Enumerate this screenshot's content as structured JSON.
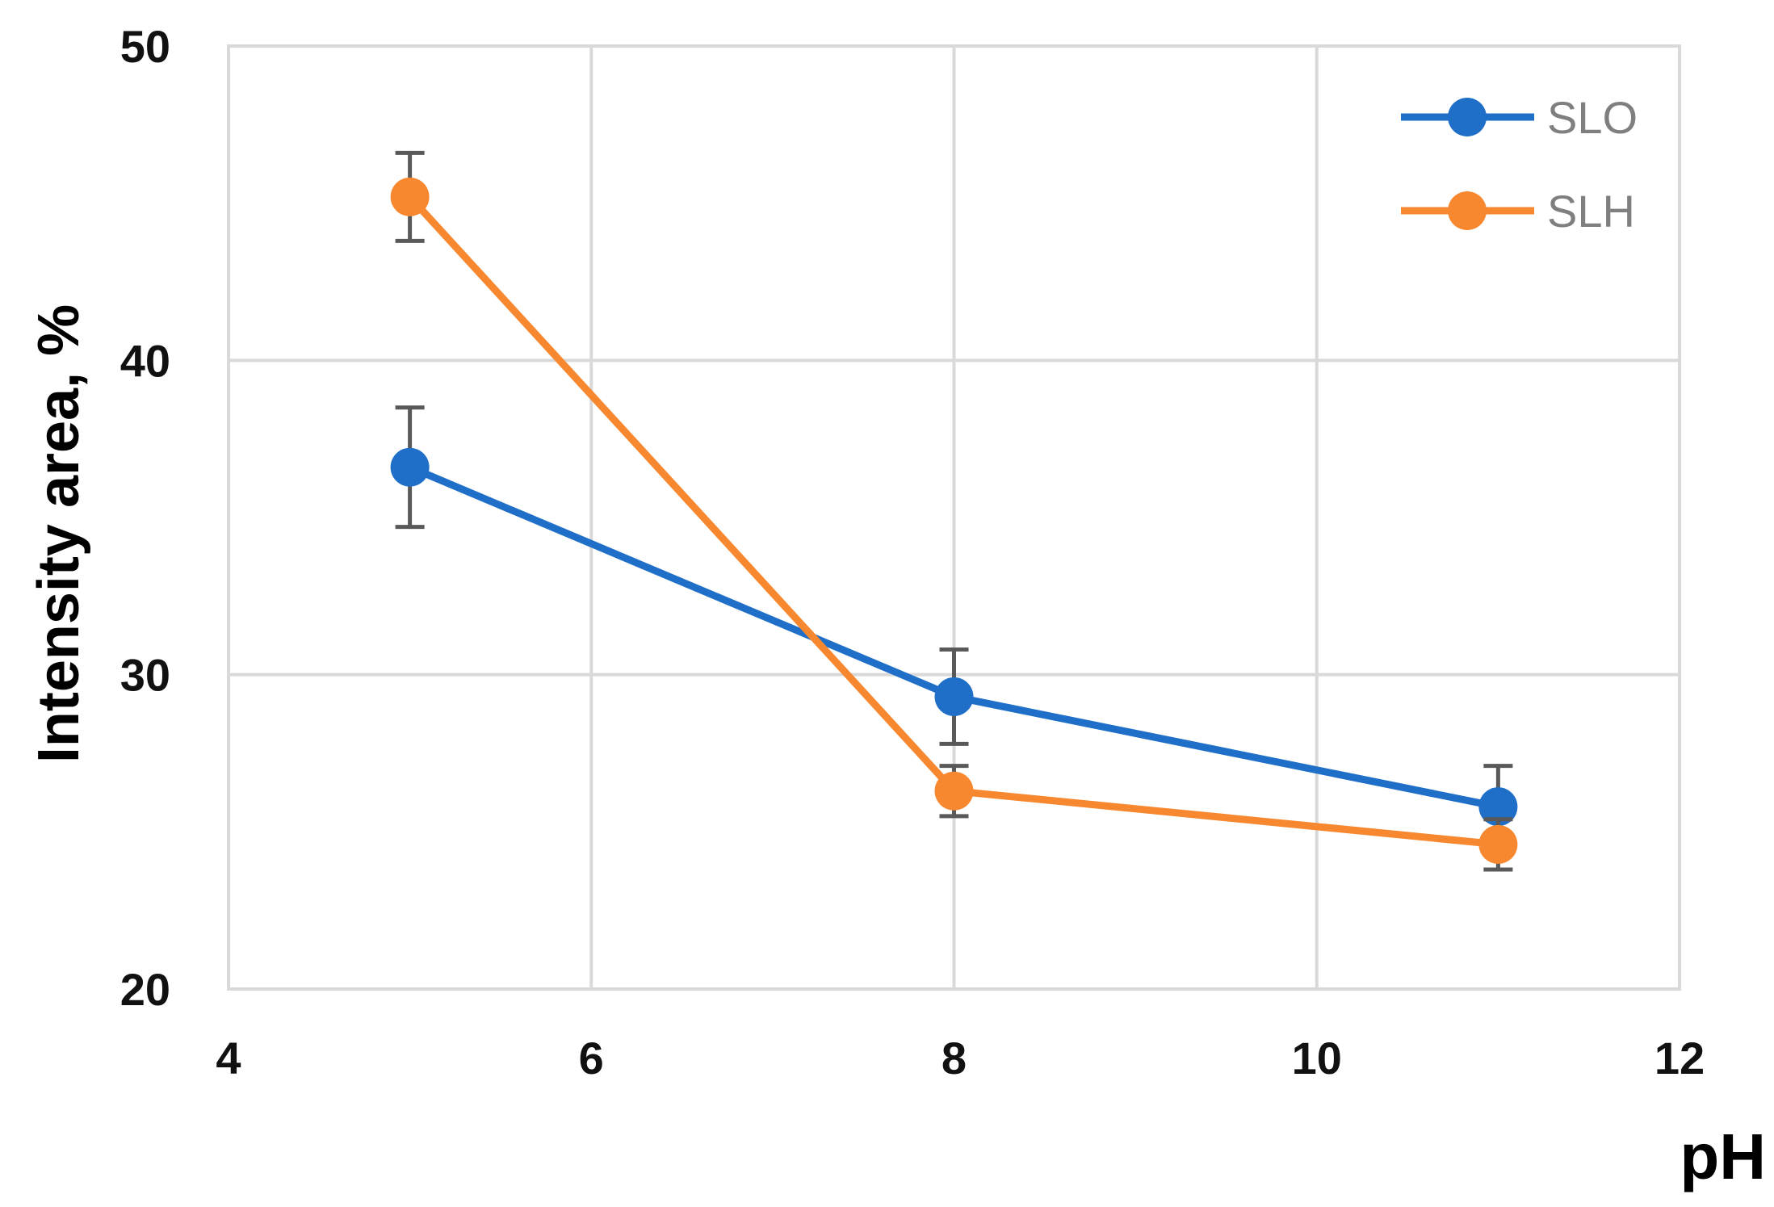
{
  "chart_data": {
    "type": "line",
    "title": "",
    "xlabel": "pH",
    "ylabel": "Intensity area, %",
    "xlim": [
      4,
      12
    ],
    "ylim": [
      20,
      50
    ],
    "xticks": [
      4,
      6,
      8,
      10,
      12
    ],
    "yticks": [
      20,
      30,
      40,
      50
    ],
    "grid": true,
    "legend_position": "top-right",
    "series": [
      {
        "name": "SLO",
        "color": "#1f6fc8",
        "x": [
          5,
          8,
          11
        ],
        "y": [
          36.6,
          29.3,
          25.8
        ],
        "error": [
          1.9,
          1.5,
          1.3
        ]
      },
      {
        "name": "SLH",
        "color": "#f7882f",
        "x": [
          5,
          8,
          11
        ],
        "y": [
          45.2,
          26.3,
          24.6
        ],
        "error": [
          1.4,
          0.8,
          0.8
        ]
      }
    ]
  }
}
